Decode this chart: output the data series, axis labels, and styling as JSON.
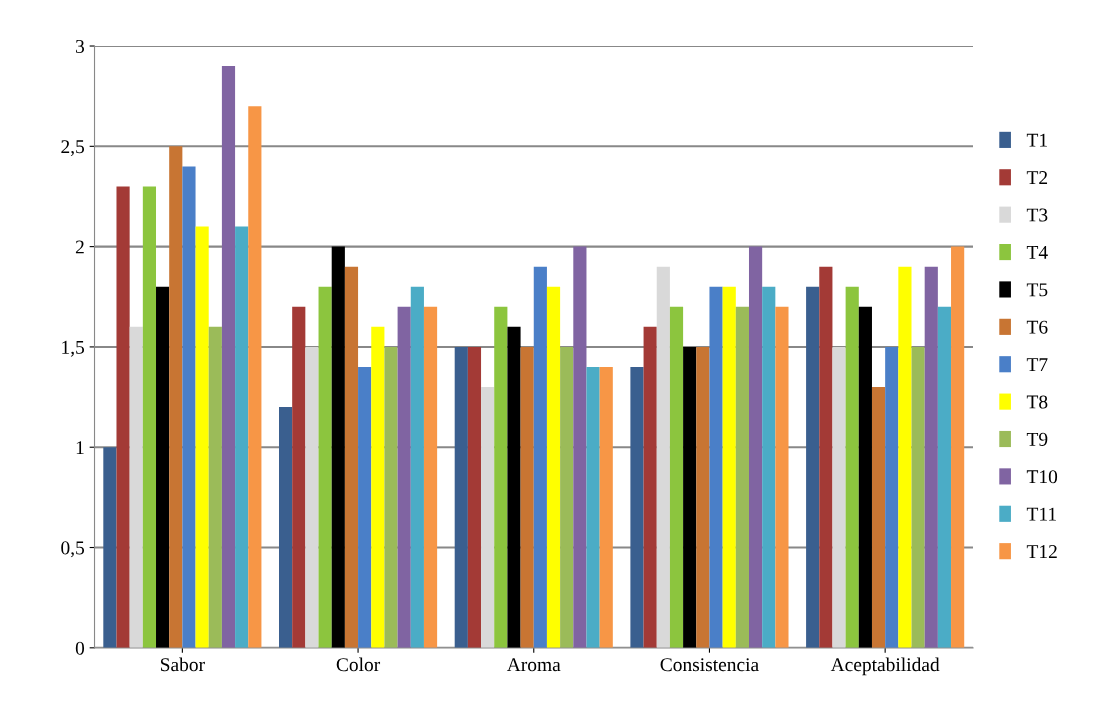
{
  "chart_data": {
    "type": "bar",
    "categories": [
      "Sabor",
      "Color",
      "Aroma",
      "Consistencia",
      "Aceptabilidad"
    ],
    "series": [
      {
        "name": "T1",
        "color": "#3a5f8f",
        "values": [
          1.0,
          1.2,
          1.5,
          1.4,
          1.8
        ]
      },
      {
        "name": "T2",
        "color": "#a33a36",
        "values": [
          2.3,
          1.7,
          1.5,
          1.6,
          1.9
        ]
      },
      {
        "name": "T3",
        "color": "#d9d9d9",
        "values": [
          1.6,
          1.5,
          1.3,
          1.9,
          1.5
        ]
      },
      {
        "name": "T4",
        "color": "#8cc53e",
        "values": [
          2.3,
          1.8,
          1.7,
          1.7,
          1.8
        ]
      },
      {
        "name": "T5",
        "color": "#000000",
        "values": [
          1.8,
          2.0,
          1.6,
          1.5,
          1.7
        ]
      },
      {
        "name": "T6",
        "color": "#c87533",
        "values": [
          2.5,
          1.9,
          1.5,
          1.5,
          1.3
        ]
      },
      {
        "name": "T7",
        "color": "#4a7fc8",
        "values": [
          2.4,
          1.4,
          1.9,
          1.8,
          1.5
        ]
      },
      {
        "name": "T8",
        "color": "#ffff00",
        "values": [
          2.1,
          1.6,
          1.8,
          1.8,
          1.9
        ]
      },
      {
        "name": "T9",
        "color": "#9bbb59",
        "values": [
          1.6,
          1.5,
          1.5,
          1.7,
          1.5
        ]
      },
      {
        "name": "T10",
        "color": "#8064a2",
        "values": [
          2.9,
          1.7,
          2.0,
          2.0,
          1.9
        ]
      },
      {
        "name": "T11",
        "color": "#4bacc6",
        "values": [
          2.1,
          1.8,
          1.4,
          1.8,
          1.7
        ]
      },
      {
        "name": "T12",
        "color": "#f79646",
        "values": [
          2.7,
          1.7,
          1.4,
          1.7,
          2.0
        ]
      }
    ],
    "ylim": [
      0,
      3
    ],
    "yticks": [
      0,
      {
        "value": 0.5,
        "label": "0,5"
      },
      1,
      {
        "value": 1.5,
        "label": "1,5"
      },
      2,
      {
        "value": 2.5,
        "label": "2,5"
      },
      3
    ],
    "grid": "y",
    "legend": "right"
  }
}
